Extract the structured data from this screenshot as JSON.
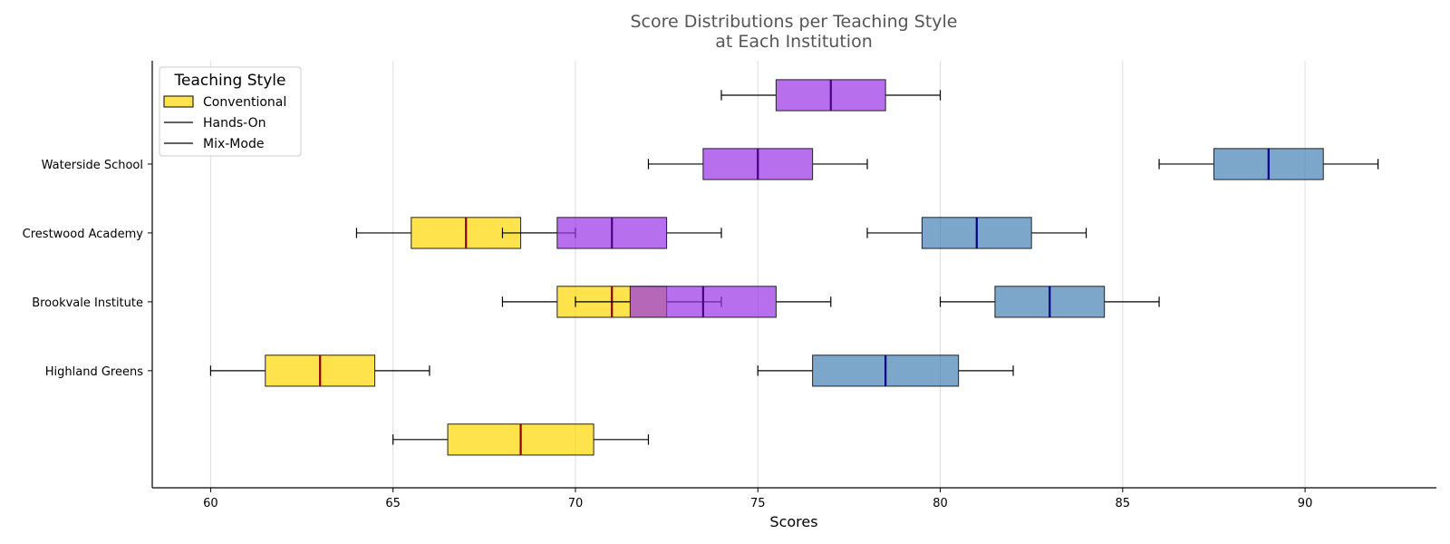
{
  "chart_data": {
    "type": "boxplot",
    "orientation": "horizontal",
    "title_lines": [
      "Score Distributions per Teaching Style",
      "at Each Institution"
    ],
    "xlabel": "Scores",
    "ylabel": "",
    "xlim": [
      58.4,
      93.6
    ],
    "x_ticks": [
      60,
      65,
      70,
      75,
      80,
      85,
      90
    ],
    "grid": "vertical",
    "legend": {
      "title": "Teaching Style",
      "placement": "upper-left",
      "entries": [
        "Conventional",
        "Hands-On",
        "Mix-Mode"
      ]
    },
    "y_ticks": [
      {
        "label": "Waterside School",
        "pos": 4
      },
      {
        "label": "Crestwood Academy",
        "pos": 3
      },
      {
        "label": "Brookvale Institute",
        "pos": 2
      },
      {
        "label": "Highland Greens",
        "pos": 1
      }
    ],
    "ylim": [
      -0.7,
      5.5
    ],
    "boxes": [
      {
        "style": "Conventional",
        "pos": 0,
        "whislo": 65,
        "q1": 66.5,
        "med": 68.5,
        "q3": 70.5,
        "whishi": 72
      },
      {
        "style": "Conventional",
        "pos": 1,
        "whislo": 60,
        "q1": 61.5,
        "med": 63,
        "q3": 64.5,
        "whishi": 66
      },
      {
        "style": "Conventional",
        "pos": 2,
        "whislo": 68,
        "q1": 69.5,
        "med": 71,
        "q3": 72.5,
        "whishi": 74
      },
      {
        "style": "Conventional",
        "pos": 3,
        "whislo": 64,
        "q1": 65.5,
        "med": 67,
        "q3": 68.5,
        "whishi": 70
      },
      {
        "style": "Mix-Mode",
        "pos": 2,
        "whislo": 70,
        "q1": 71.5,
        "med": 73.5,
        "q3": 75.5,
        "whishi": 77
      },
      {
        "style": "Mix-Mode",
        "pos": 3,
        "whislo": 68,
        "q1": 69.5,
        "med": 71,
        "q3": 72.5,
        "whishi": 74
      },
      {
        "style": "Mix-Mode",
        "pos": 4,
        "whislo": 72,
        "q1": 73.5,
        "med": 75,
        "q3": 76.5,
        "whishi": 78
      },
      {
        "style": "Mix-Mode",
        "pos": 5,
        "whislo": 74,
        "q1": 75.5,
        "med": 77,
        "q3": 78.5,
        "whishi": 80
      },
      {
        "style": "Hands-On",
        "pos": 1,
        "whislo": 75,
        "q1": 76.5,
        "med": 78.5,
        "q3": 80.5,
        "whishi": 82
      },
      {
        "style": "Hands-On",
        "pos": 2,
        "whislo": 80,
        "q1": 81.5,
        "med": 83,
        "q3": 84.5,
        "whishi": 86
      },
      {
        "style": "Hands-On",
        "pos": 3,
        "whislo": 78,
        "q1": 79.5,
        "med": 81,
        "q3": 82.5,
        "whishi": 84
      },
      {
        "style": "Hands-On",
        "pos": 4,
        "whislo": 86,
        "q1": 87.5,
        "med": 89,
        "q3": 90.5,
        "whishi": 92
      }
    ],
    "colors": {
      "Conventional": {
        "fill": "#FFD700",
        "median": "#8B0000"
      },
      "Mix-Mode": {
        "fill": "#9932E6",
        "median": "#4B0082"
      },
      "Hands-On": {
        "fill": "#4682B4",
        "median": "#00008B"
      },
      "grid": "#dddddd",
      "edge": "#222222"
    }
  }
}
